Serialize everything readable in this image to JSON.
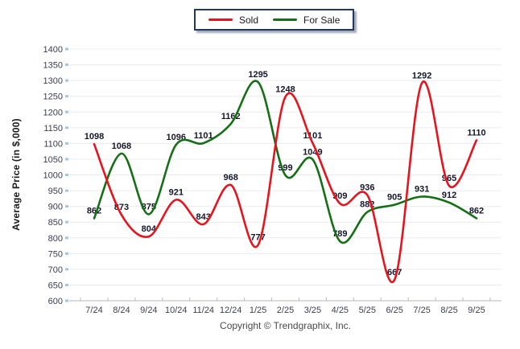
{
  "footer": {
    "copyright": "Copyright © Trendgraphix, Inc."
  },
  "chart_data": {
    "type": "line",
    "smooth": true,
    "title": "",
    "ylabel": "Average Price (in $,000)",
    "xlabel": "",
    "ylim": [
      600,
      1400
    ],
    "ytick_step": 50,
    "grid": true,
    "legend_position": "top-center",
    "x": [
      "7/24",
      "8/24",
      "9/24",
      "10/24",
      "11/24",
      "12/24",
      "1/25",
      "2/25",
      "3/25",
      "4/25",
      "5/25",
      "6/25",
      "7/25",
      "8/25",
      "9/25"
    ],
    "series": [
      {
        "name": "Sold",
        "color": "#e8131d",
        "values": [
          1098,
          873,
          804,
          921,
          843,
          968,
          777,
          1248,
          1101,
          909,
          936,
          667,
          1292,
          965,
          1110
        ]
      },
      {
        "name": "For Sale",
        "color": "#157015",
        "values": [
          862,
          1068,
          875,
          1096,
          1101,
          1162,
          1295,
          999,
          1049,
          789,
          882,
          905,
          931,
          912,
          862
        ]
      }
    ]
  },
  "colors": {
    "grid": "#ececec",
    "axis": "#b9b9b9",
    "y_tick": "#9fc5e8",
    "tick_label": "#3d3d52",
    "data_label": "#16162c",
    "legend_border": "#1f3864"
  }
}
